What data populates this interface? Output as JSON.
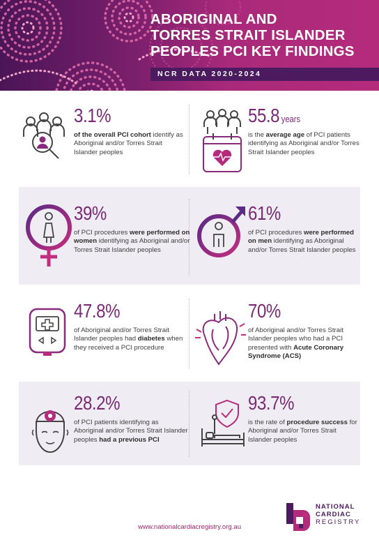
{
  "header": {
    "title_line1": "ABORIGINAL AND",
    "title_line2": "TORRES STRAIT ISLANDER",
    "title_line3": "PEOPLES PCI KEY FINDINGS",
    "subtitle": "NCR DATA 2020-2024"
  },
  "colors": {
    "accent": "#7a2a74",
    "header_dark": "#4c1a5e",
    "header_magenta": "#b52b7c",
    "panel": "#efedf3",
    "link": "#a0246e"
  },
  "findings": [
    {
      "icon": "people-magnifier-icon",
      "value": "3.1%",
      "unit": "",
      "desc": [
        {
          "t": "of the overall PCI cohort",
          "b": true
        },
        {
          "t": " identify as Aboriginal and/or Torres Strait Islander peoples",
          "b": false
        }
      ]
    },
    {
      "icon": "calendar-heart-icon",
      "value": "55.8",
      "unit": "years",
      "desc": [
        {
          "t": "is the ",
          "b": false
        },
        {
          "t": "average age",
          "b": true
        },
        {
          "t": " of PCI patients identifying as Aboriginal and/or Torres Strait Islander peoples",
          "b": false
        }
      ]
    },
    {
      "icon": "female-symbol-icon",
      "value": "39%",
      "unit": "",
      "desc": [
        {
          "t": "of PCI procedures ",
          "b": false
        },
        {
          "t": "were performed on women",
          "b": true
        },
        {
          "t": " identifying as Aboriginal and/or Torres Strait Islander peoples",
          "b": false
        }
      ]
    },
    {
      "icon": "male-symbol-icon",
      "value": "61%",
      "unit": "",
      "desc": [
        {
          "t": "of PCI procedures ",
          "b": false
        },
        {
          "t": "were performed on men",
          "b": true
        },
        {
          "t": " identifying as Aboriginal and/or Torres Strait Islander peoples",
          "b": false
        }
      ]
    },
    {
      "icon": "glucose-meter-icon",
      "value": "47.8%",
      "unit": "",
      "desc": [
        {
          "t": "of Aboriginal and/or Torres Strait Islander peoples had ",
          "b": false
        },
        {
          "t": "diabetes",
          "b": true
        },
        {
          "t": " when they received a PCI procedure",
          "b": false
        }
      ]
    },
    {
      "icon": "heart-icon",
      "value": "70%",
      "unit": "",
      "desc": [
        {
          "t": "of Aboriginal and/or Torres Strait Islander peoples who had a PCI presented with ",
          "b": false
        },
        {
          "t": "Acute Coronary Syndrome (ACS)",
          "b": true
        }
      ]
    },
    {
      "icon": "patient-head-icon",
      "value": "28.2%",
      "unit": "",
      "desc": [
        {
          "t": "of PCI patients identifying as Aboriginal and/or Torres Strait Islander peoples ",
          "b": false
        },
        {
          "t": "had a previous PCI",
          "b": true
        }
      ]
    },
    {
      "icon": "hospital-bed-shield-icon",
      "value": "93.7%",
      "unit": "",
      "desc": [
        {
          "t": "is the rate of ",
          "b": false
        },
        {
          "t": "procedure success",
          "b": true
        },
        {
          "t": " for Aboriginal and/or Torres Strait Islander peoples",
          "b": false
        }
      ]
    }
  ],
  "footer": {
    "url": "www.nationalcardiacregistry.org.au",
    "logo_line1": "NATIONAL",
    "logo_line2": "CARDIAC",
    "logo_line3": "REGISTRY"
  }
}
